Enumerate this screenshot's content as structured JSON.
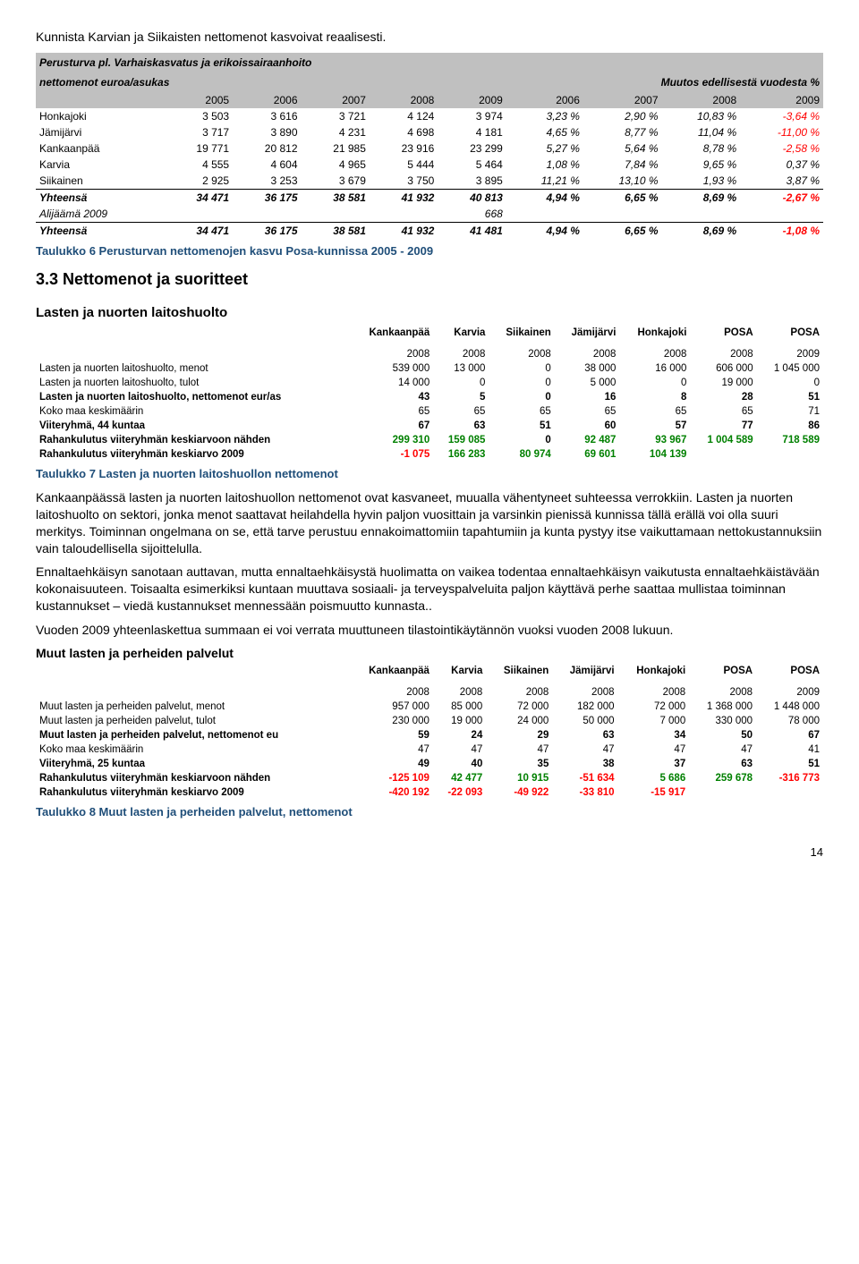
{
  "intro_line": "Kunnista Karvian ja Siikaisten nettomenot kasvoivat reaalisesti.",
  "tbl6": {
    "title_a": "Perusturva pl. Varhaiskasvatus ja erikoissairaanhoito",
    "title_b": "nettomenot euroa/asukas",
    "right_label": "Muutos edellisestä vuodesta %",
    "year_cols_left": [
      "2005",
      "2006",
      "2007",
      "2008",
      "2009"
    ],
    "year_cols_right": [
      "2006",
      "2007",
      "2008",
      "2009"
    ],
    "rows": [
      {
        "label": "Honkajoki",
        "vals": [
          "3 503",
          "3 616",
          "3 721",
          "4 124",
          "3 974"
        ],
        "pcts": [
          "3,23 %",
          "2,90 %",
          "10,83 %",
          "-3,64 %"
        ],
        "neg": [
          false,
          false,
          false,
          true
        ]
      },
      {
        "label": "Jämijärvi",
        "vals": [
          "3 717",
          "3 890",
          "4 231",
          "4 698",
          "4 181"
        ],
        "pcts": [
          "4,65 %",
          "8,77 %",
          "11,04 %",
          "-11,00 %"
        ],
        "neg": [
          false,
          false,
          false,
          true
        ]
      },
      {
        "label": "Kankaanpää",
        "vals": [
          "19 771",
          "20 812",
          "21 985",
          "23 916",
          "23 299"
        ],
        "pcts": [
          "5,27 %",
          "5,64 %",
          "8,78 %",
          "-2,58 %"
        ],
        "neg": [
          false,
          false,
          false,
          true
        ]
      },
      {
        "label": "Karvia",
        "vals": [
          "4 555",
          "4 604",
          "4 965",
          "5 444",
          "5 464"
        ],
        "pcts": [
          "1,08 %",
          "7,84 %",
          "9,65 %",
          "0,37 %"
        ],
        "neg": [
          false,
          false,
          false,
          false
        ]
      },
      {
        "label": "Siikainen",
        "vals": [
          "2 925",
          "3 253",
          "3 679",
          "3 750",
          "3 895"
        ],
        "pcts": [
          "11,21 %",
          "13,10 %",
          "1,93 %",
          "3,87 %"
        ],
        "neg": [
          false,
          false,
          false,
          false
        ]
      }
    ],
    "yhteensa1": {
      "label": "Yhteensä",
      "vals": [
        "34 471",
        "36 175",
        "38 581",
        "41 932",
        "40 813"
      ],
      "pcts": [
        "4,94 %",
        "6,65 %",
        "8,69 %",
        "-2,67 %"
      ],
      "neg": [
        false,
        false,
        false,
        true
      ]
    },
    "alij": {
      "label": "Alijäämä 2009",
      "val": "668"
    },
    "yhteensa2": {
      "label": "Yhteensä",
      "vals": [
        "34 471",
        "36 175",
        "38 581",
        "41 932",
        "41 481"
      ],
      "pcts": [
        "4,94 %",
        "6,65 %",
        "8,69 %",
        "-1,08 %"
      ],
      "neg": [
        false,
        false,
        false,
        true
      ]
    }
  },
  "caption6": "Taulukko 6 Perusturvan nettomenojen kasvu Posa-kunnissa 2005 - 2009",
  "sec33": "3.3   Nettomenot  ja suoritteet",
  "sub_lasten": "Lasten ja nuorten laitoshuolto",
  "ind_cols": [
    "Kankaanpää",
    "Karvia",
    "Siikainen",
    "Jämijärvi",
    "Honkajoki",
    "POSA",
    "POSA"
  ],
  "ind_years": [
    "2008",
    "2008",
    "2008",
    "2008",
    "2008",
    "2008",
    "2009"
  ],
  "tbl7": {
    "rows": [
      {
        "label": "Lasten ja nuorten laitoshuolto, menot",
        "vals": [
          "539 000",
          "13 000",
          "0",
          "38 000",
          "16 000",
          "606 000",
          "1 045 000"
        ]
      },
      {
        "label": "Lasten ja nuorten laitoshuolto, tulot",
        "vals": [
          "14 000",
          "0",
          "0",
          "5 000",
          "0",
          "19 000",
          "0"
        ]
      },
      {
        "label": "Lasten ja nuorten laitoshuolto, nettomenot eur/as",
        "bold": true,
        "vals": [
          "43",
          "5",
          "0",
          "16",
          "8",
          "28",
          "51"
        ]
      },
      {
        "label": "Koko maa keskimäärin",
        "vals": [
          "65",
          "65",
          "65",
          "65",
          "65",
          "65",
          "71"
        ]
      },
      {
        "label": "Viiteryhmä, 44  kuntaa",
        "bold": true,
        "vals": [
          "67",
          "63",
          "51",
          "60",
          "57",
          "77",
          "86"
        ]
      },
      {
        "label": "Rahankulutus viiteryhmän keskiarvoon nähden",
        "bold": true,
        "vals": [
          "299 310",
          "159 085",
          "0",
          "92 487",
          "93 967",
          "1 004 589",
          "718 589"
        ],
        "colors": [
          "green",
          "green",
          "",
          "green",
          "green",
          "green",
          "green"
        ]
      },
      {
        "label": "Rahankulutus viiteryhmän keskiarvo 2009",
        "bold": true,
        "vals": [
          "-1 075",
          "166 283",
          "80 974",
          "69 601",
          "104 139",
          "",
          ""
        ],
        "colors": [
          "red",
          "green",
          "green",
          "green",
          "green",
          "",
          ""
        ]
      }
    ]
  },
  "caption7": "Taulukko 7 Lasten ja nuorten laitoshuollon nettomenot",
  "para1": "Kankaanpäässä lasten ja nuorten laitoshuollon nettomenot ovat kasvaneet, muualla vähentyneet suhteessa verrokkiin. Lasten ja nuorten laitoshuolto on sektori, jonka menot saattavat heilahdella hyvin paljon vuosittain ja varsinkin pienissä kunnissa tällä erällä voi olla suuri merkitys. Toiminnan ongelmana on se, että tarve perustuu ennakoimattomiin tapahtumiin ja kunta pystyy itse vaikuttamaan nettokustannuksiin vain taloudellisella sijoittelulla.",
  "para2": "Ennaltaehkäisyn sanotaan auttavan, mutta ennaltaehkäisystä huolimatta on vaikea todentaa ennaltaehkäisyn vaikutusta ennaltaehkäistävään kokonaisuuteen. Toisaalta esimerkiksi kuntaan muuttava sosiaali- ja terveyspalveluita paljon käyttävä perhe saattaa mullistaa toiminnan kustannukset – viedä kustannukset mennessään poismuutto kunnasta..",
  "para3": "Vuoden 2009 yhteenlaskettua summaan ei voi verrata muuttuneen tilastointikäytännön vuoksi vuoden 2008 lukuun.",
  "bold_para": "Muut lasten ja perheiden palvelut",
  "tbl8": {
    "rows": [
      {
        "label": "Muut lasten ja perheiden palvelut, menot",
        "vals": [
          "957 000",
          "85 000",
          "72 000",
          "182 000",
          "72 000",
          "1 368 000",
          "1 448 000"
        ]
      },
      {
        "label": "Muut lasten ja perheiden palvelut, tulot",
        "vals": [
          "230 000",
          "19 000",
          "24 000",
          "50 000",
          "7 000",
          "330 000",
          "78 000"
        ]
      },
      {
        "label": "Muut lasten ja perheiden palvelut, nettomenot eu",
        "bold": true,
        "vals": [
          "59",
          "24",
          "29",
          "63",
          "34",
          "50",
          "67"
        ]
      },
      {
        "label": "Koko maa keskimäärin",
        "vals": [
          "47",
          "47",
          "47",
          "47",
          "47",
          "47",
          "41"
        ]
      },
      {
        "label": "Viiteryhmä, 25  kuntaa",
        "bold": true,
        "vals": [
          "49",
          "40",
          "35",
          "38",
          "37",
          "63",
          "51"
        ]
      },
      {
        "label": "Rahankulutus viiteryhmän keskiarvoon nähden",
        "bold": true,
        "vals": [
          "-125 109",
          "42 477",
          "10 915",
          "-51 634",
          "5 686",
          "259 678",
          "-316 773"
        ],
        "colors": [
          "red",
          "green",
          "green",
          "red",
          "green",
          "green",
          "red"
        ]
      },
      {
        "label": "Rahankulutus viiteryhmän keskiarvo 2009",
        "bold": true,
        "vals": [
          "-420 192",
          "-22 093",
          "-49 922",
          "-33 810",
          "-15 917",
          "",
          ""
        ],
        "colors": [
          "red",
          "red",
          "red",
          "red",
          "red",
          "",
          ""
        ]
      }
    ]
  },
  "caption8": "Taulukko 8 Muut lasten ja perheiden palvelut, nettomenot",
  "page_num": "14"
}
